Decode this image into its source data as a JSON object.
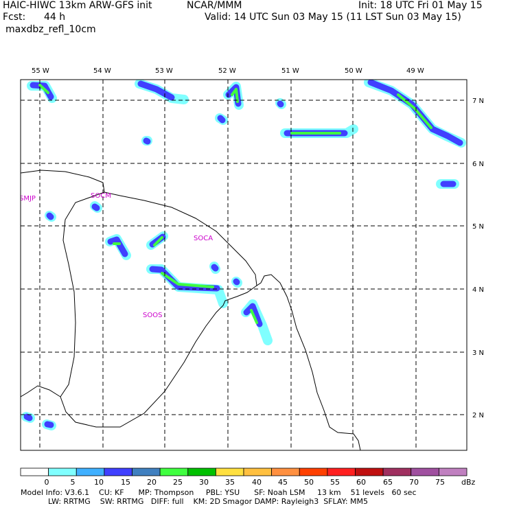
{
  "header": {
    "model_title": "HAIC-HIWC 13km ARW-GFS init",
    "org": "NCAR/MMM",
    "init": "Init: 18 UTC Fri 01 May 15",
    "fcst_label": "Fcst:",
    "fcst_value": "44 h",
    "valid": "Valid: 14 UTC Sun 03 May 15 (11 LST Sun 03 May 15)",
    "field": "maxdbz_refl_10cm"
  },
  "map": {
    "lon_labels": [
      "55 W",
      "54 W",
      "53 W",
      "52 W",
      "51 W",
      "50 W",
      "49 W"
    ],
    "lat_labels": [
      "7 N",
      "6 N",
      "5 N",
      "4 N",
      "3 N",
      "2 N"
    ],
    "stations": [
      "SMJP",
      "SOCM",
      "SOCA",
      "SOOS"
    ],
    "station_color": "#cc00cc"
  },
  "colorbar": {
    "ticks": [
      "0",
      "5",
      "10",
      "15",
      "20",
      "25",
      "30",
      "35",
      "40",
      "45",
      "50",
      "55",
      "60",
      "65",
      "70",
      "75"
    ],
    "unit": "dBz",
    "colors": [
      "#ffffff",
      "#80ffff",
      "#40b0ff",
      "#4040ff",
      "#4080c0",
      "#40ff40",
      "#00c000",
      "#ffe040",
      "#ffc040",
      "#ff9040",
      "#ff4000",
      "#ff2020",
      "#c01010",
      "#a03060",
      "#a050a0",
      "#c080c0"
    ]
  },
  "footer": {
    "line1": "Model Info: V3.6.1    CU: KF      MP: Thompson     PBL: YSU      SF: Noah LSM     13 km    51 levels   60 sec",
    "line2": "LW: RRTMG    SW: RRTMG   DIFF: full    KM: 2D Smagor DAMP: Rayleigh3  SFLAY: MM5"
  }
}
